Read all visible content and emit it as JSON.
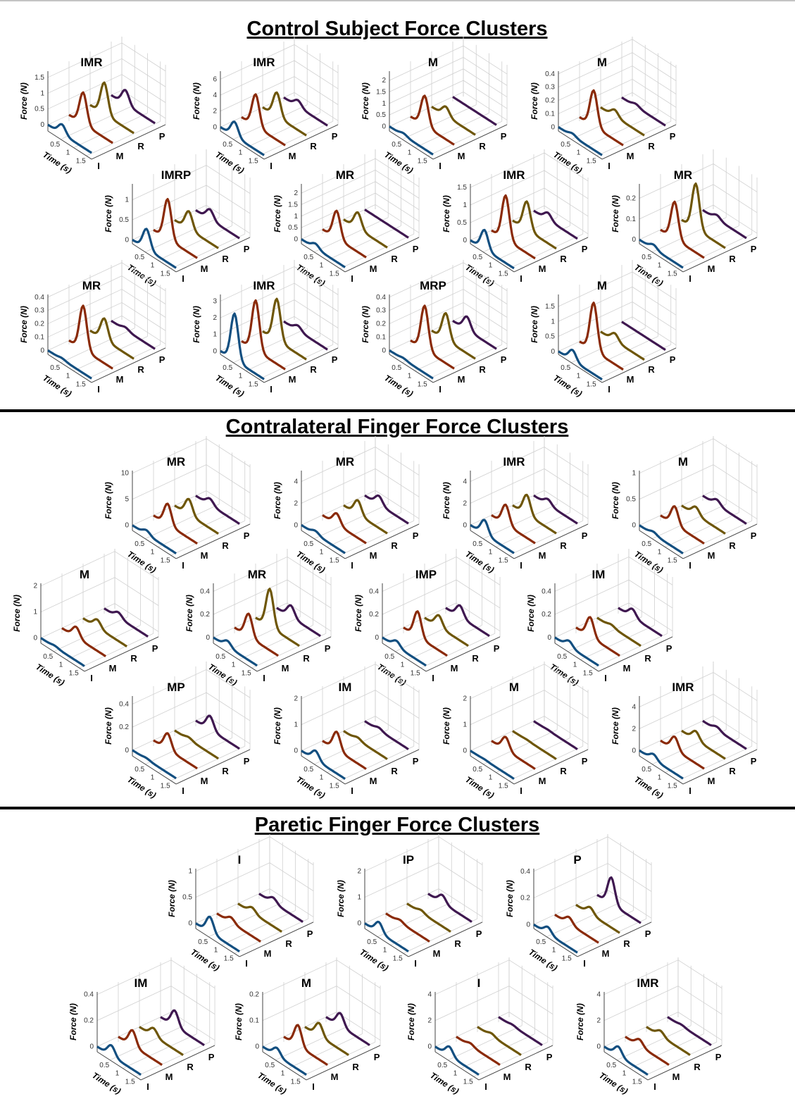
{
  "shared": {
    "y_label": "Force (N)",
    "x_label": "Time (s)",
    "xticks": [
      0.5,
      1,
      1.5
    ],
    "xlim": [
      0,
      1.7
    ],
    "fingers": [
      "I",
      "M",
      "R",
      "P"
    ],
    "colors": [
      "#134f80",
      "#8a2a08",
      "#6e5608",
      "#3f1850"
    ]
  },
  "sections": [
    {
      "title": "Control Subject Force Clusters",
      "rows": [
        [
          {
            "type": "waterfall3d",
            "title": "IMR",
            "ylim": [
              -0.2,
              1.7
            ],
            "yticks": [
              0,
              0.5,
              1,
              1.5
            ],
            "peaks": [
              0.3,
              1.0,
              1.0,
              0.45
            ]
          },
          {
            "type": "waterfall3d",
            "title": "IMR",
            "ylim": [
              -0.5,
              7
            ],
            "yticks": [
              0,
              2,
              4,
              6
            ],
            "peaks": [
              1.8,
              4,
              3,
              0.8
            ]
          },
          {
            "type": "waterfall3d",
            "title": "M",
            "ylim": [
              -0.2,
              2.4
            ],
            "yticks": [
              0,
              0.5,
              1,
              1.5,
              2
            ],
            "peaks": [
              0.1,
              1.3,
              0.4,
              0
            ]
          },
          {
            "type": "waterfall3d",
            "title": "M",
            "ylim": [
              -0.03,
              0.42
            ],
            "yticks": [
              0,
              0.1,
              0.2,
              0.3,
              0.4
            ],
            "peaks": [
              0.02,
              0.27,
              0.05,
              0.02
            ]
          }
        ],
        [
          {
            "type": "waterfall3d",
            "title": "IMRP",
            "ylim": [
              -0.1,
              1.4
            ],
            "yticks": [
              0,
              0.5,
              1
            ],
            "peaks": [
              0.5,
              1.0,
              0.45,
              0.25
            ]
          },
          {
            "type": "waterfall3d",
            "title": "MR",
            "ylim": [
              -0.2,
              2.4
            ],
            "yticks": [
              0,
              0.5,
              1,
              1.5,
              2
            ],
            "peaks": [
              0.2,
              1.2,
              0.7,
              0
            ]
          },
          {
            "type": "waterfall3d",
            "title": "IMR",
            "ylim": [
              -0.1,
              1.6
            ],
            "yticks": [
              0,
              0.5,
              1,
              1.5
            ],
            "peaks": [
              0.55,
              1.25,
              0.8,
              0.2
            ]
          },
          {
            "type": "waterfall3d",
            "title": "MR",
            "ylim": [
              -0.02,
              0.27
            ],
            "yticks": [
              0,
              0.1,
              0.2
            ],
            "peaks": [
              0.02,
              0.18,
              0.22,
              0.02
            ]
          }
        ],
        [
          {
            "type": "waterfall3d",
            "title": "MR",
            "ylim": [
              -0.03,
              0.42
            ],
            "yticks": [
              0,
              0.1,
              0.2,
              0.3,
              0.4
            ],
            "peaks": [
              0.01,
              0.33,
              0.16,
              0.02
            ]
          },
          {
            "type": "waterfall3d",
            "title": "IMR",
            "ylim": [
              -0.2,
              3.4
            ],
            "yticks": [
              0,
              1,
              2,
              3
            ],
            "peaks": [
              2.8,
              3,
              2.5,
              0.3
            ]
          },
          {
            "type": "waterfall3d",
            "title": "MRP",
            "ylim": [
              -0.03,
              0.42
            ],
            "yticks": [
              0,
              0.1,
              0.2,
              0.3,
              0.4
            ],
            "peaks": [
              0.01,
              0.33,
              0.2,
              0.1
            ]
          },
          {
            "type": "waterfall3d",
            "title": "M",
            "ylim": [
              -0.1,
              1.9
            ],
            "yticks": [
              0,
              0.5,
              1,
              1.5
            ],
            "peaks": [
              0.35,
              1.6,
              0.25,
              0
            ]
          }
        ]
      ]
    },
    {
      "title": "Contralateral Finger Force Clusters",
      "rows": [
        [
          {
            "type": "waterfall3d",
            "title": "MR",
            "ylim": [
              -1,
              10.5
            ],
            "yticks": [
              0,
              5,
              10
            ],
            "peaks": [
              0.8,
              4,
              3,
              1.2
            ]
          },
          {
            "type": "waterfall3d",
            "title": "MR",
            "ylim": [
              -0.5,
              5
            ],
            "yticks": [
              0,
              2,
              4
            ],
            "peaks": [
              0.3,
              1,
              1.3,
              0.8
            ]
          },
          {
            "type": "waterfall3d",
            "title": "IMR",
            "ylim": [
              -0.5,
              5
            ],
            "yticks": [
              0,
              2,
              4
            ],
            "peaks": [
              1.3,
              1.8,
              1.8,
              0.5
            ]
          },
          {
            "type": "waterfall3d",
            "title": "M",
            "ylim": [
              -0.1,
              1.05
            ],
            "yticks": [
              0,
              0.5,
              1
            ],
            "peaks": [
              0.05,
              0.35,
              0.15,
              0.1
            ]
          }
        ],
        [
          {
            "type": "waterfall3d",
            "title": "M",
            "ylim": [
              -0.2,
              2.1
            ],
            "yticks": [
              0,
              1,
              2
            ],
            "peaks": [
              0.05,
              0.4,
              0.3,
              0.2
            ]
          },
          {
            "type": "waterfall3d",
            "title": "MR",
            "ylim": [
              -0.05,
              0.47
            ],
            "yticks": [
              0,
              0.2,
              0.4
            ],
            "peaks": [
              0.05,
              0.2,
              0.33,
              0.1
            ]
          },
          {
            "type": "waterfall3d",
            "title": "IMP",
            "ylim": [
              -0.05,
              0.47
            ],
            "yticks": [
              0,
              0.2,
              0.4
            ],
            "peaks": [
              0.05,
              0.22,
              0.1,
              0.1
            ]
          },
          {
            "type": "waterfall3d",
            "title": "IM",
            "ylim": [
              -0.05,
              0.47
            ],
            "yticks": [
              0,
              0.2,
              0.4
            ],
            "peaks": [
              0.05,
              0.17,
              0.02,
              0.07
            ]
          }
        ],
        [
          {
            "type": "waterfall3d",
            "title": "MP",
            "ylim": [
              -0.05,
              0.47
            ],
            "yticks": [
              0,
              0.2,
              0.4
            ],
            "peaks": [
              0.01,
              0.14,
              0.02,
              0.12
            ]
          },
          {
            "type": "waterfall3d",
            "title": "IM",
            "ylim": [
              -0.2,
              2.1
            ],
            "yticks": [
              0,
              1,
              2
            ],
            "peaks": [
              0.35,
              0.7,
              0.1,
              0.1
            ]
          },
          {
            "type": "waterfall3d",
            "title": "M",
            "ylim": [
              -0.2,
              2.1
            ],
            "yticks": [
              0,
              1,
              2
            ],
            "peaks": [
              0.02,
              0.5,
              0.02,
              0.02
            ]
          },
          {
            "type": "waterfall3d",
            "title": "IMR",
            "ylim": [
              -0.5,
              5
            ],
            "yticks": [
              0,
              2,
              4
            ],
            "peaks": [
              0.5,
              1.2,
              0.8,
              0.3
            ]
          }
        ]
      ]
    },
    {
      "title": "Paretic Finger Force Clusters",
      "rows": [
        [
          {
            "type": "waterfall3d",
            "title": "I",
            "ylim": [
              -0.1,
              1.05
            ],
            "yticks": [
              0,
              0.5,
              1
            ],
            "peaks": [
              0.3,
              0.1,
              0.1,
              0.1
            ]
          },
          {
            "type": "waterfall3d",
            "title": "IP",
            "ylim": [
              -0.2,
              2.1
            ],
            "yticks": [
              0,
              1,
              2
            ],
            "peaks": [
              0.4,
              0.1,
              0.1,
              0.3
            ]
          },
          {
            "type": "waterfall3d",
            "title": "P",
            "ylim": [
              -0.03,
              0.42
            ],
            "yticks": [
              0,
              0.2,
              0.4
            ],
            "peaks": [
              0.05,
              0.05,
              0.05,
              0.2
            ]
          }
        ],
        [
          {
            "type": "waterfall3d",
            "title": "IM",
            "ylim": [
              -0.04,
              0.42
            ],
            "yticks": [
              0,
              0.2,
              0.4
            ],
            "peaks": [
              0.08,
              0.12,
              0.06,
              0.12
            ]
          },
          {
            "type": "waterfall3d",
            "title": "M",
            "ylim": [
              -0.02,
              0.21
            ],
            "yticks": [
              0,
              0.1,
              0.2
            ],
            "peaks": [
              0.03,
              0.08,
              0.05,
              0.05
            ]
          },
          {
            "type": "waterfall3d",
            "title": "I",
            "ylim": [
              -0.4,
              4.2
            ],
            "yticks": [
              0,
              2,
              4
            ],
            "peaks": [
              0.7,
              0.2,
              0.2,
              0.1
            ]
          },
          {
            "type": "waterfall3d",
            "title": "IMR",
            "ylim": [
              -0.4,
              4.2
            ],
            "yticks": [
              0,
              2,
              4
            ],
            "peaks": [
              0.7,
              0.5,
              0.4,
              0.1
            ]
          }
        ]
      ]
    }
  ]
}
